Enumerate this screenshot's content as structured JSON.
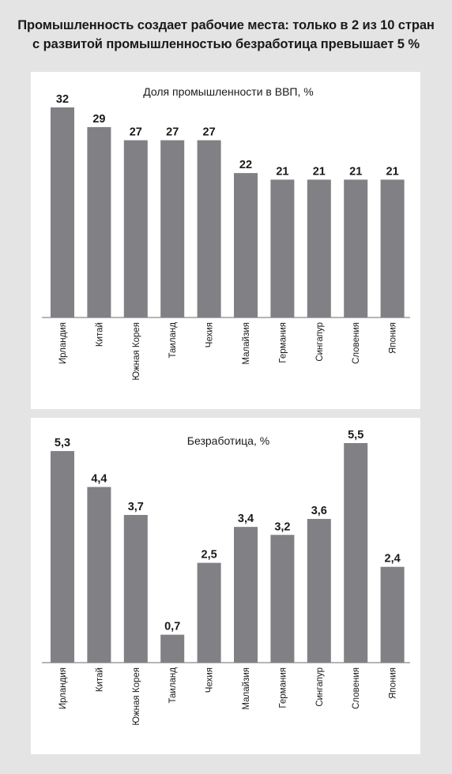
{
  "headline": {
    "line1": "Промышленность создает рабочие места: только в 2 из 10 стран",
    "line2": "с развитой промышленностью безработица превышает 5 %"
  },
  "chart_data": [
    {
      "type": "bar",
      "title": "Доля промышленности в ВВП, %",
      "categories": [
        "Ирландия",
        "Китай",
        "Южная Корея",
        "Таиланд",
        "Чехия",
        "Малайзия",
        "Германия",
        "Сингапур",
        "Словения",
        "Япония"
      ],
      "values": [
        32,
        29,
        27,
        27,
        27,
        22,
        21,
        21,
        21,
        21
      ],
      "value_labels": [
        "32",
        "29",
        "27",
        "27",
        "27",
        "22",
        "21",
        "21",
        "21",
        "21"
      ],
      "ylim": [
        0,
        32
      ],
      "grid": false,
      "bar_color": "#808085"
    },
    {
      "type": "bar",
      "title": "Безработица, %",
      "categories": [
        "Ирландия",
        "Китай",
        "Южная Корея",
        "Таиланд",
        "Чехия",
        "Малайзия",
        "Германия",
        "Сингапур",
        "Словения",
        "Япония"
      ],
      "values": [
        5.3,
        4.4,
        3.7,
        0.7,
        2.5,
        3.4,
        3.2,
        3.6,
        5.5,
        2.4
      ],
      "value_labels": [
        "5,3",
        "4,4",
        "3,7",
        "0,7",
        "2,5",
        "3,4",
        "3,2",
        "3,6",
        "5,5",
        "2,4"
      ],
      "ylim": [
        0,
        5.5
      ],
      "grid": false,
      "bar_color": "#808085"
    }
  ]
}
